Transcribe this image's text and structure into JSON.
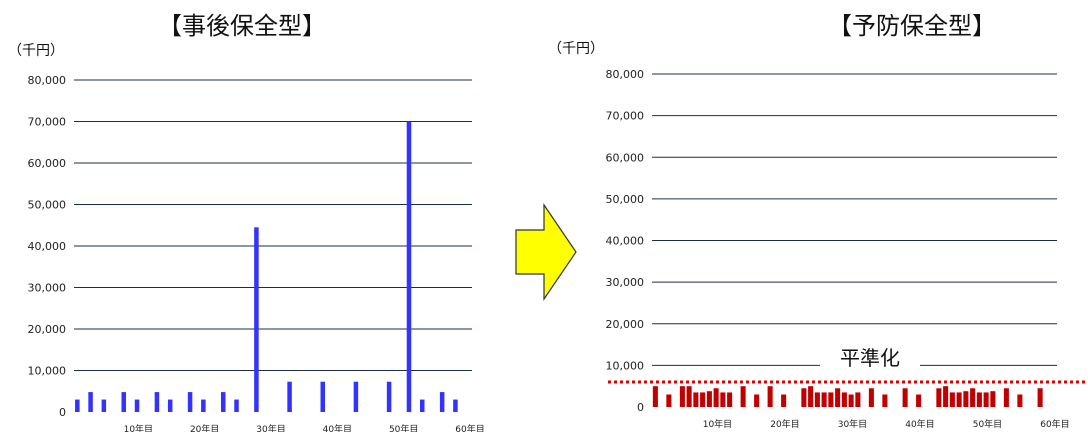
{
  "titles": {
    "left": "【事後保全型】",
    "right": "【予防保全型】"
  },
  "units": {
    "left": "（千円）",
    "right": "（千円）"
  },
  "annotation": "平準化",
  "arrow_color": "#ffff00",
  "chart_data": [
    {
      "type": "bar",
      "title": "【事後保全型】",
      "ylabel": "（千円）",
      "ylim": [
        0,
        80000
      ],
      "yticks": [
        0,
        10000,
        20000,
        30000,
        40000,
        50000,
        60000,
        70000,
        80000
      ],
      "ytick_labels": [
        "0",
        "10,000",
        "20,000",
        "30,000",
        "40,000",
        "50,000",
        "60,000",
        "70,000",
        "80,000"
      ],
      "xtick_labels": [
        "10年目",
        "20年目",
        "30年目",
        "40年目",
        "50年目",
        "60年目"
      ],
      "xtick_positions": [
        10,
        20,
        30,
        40,
        50,
        60
      ],
      "color": "#3333ff",
      "bars": [
        {
          "x": 1,
          "y": 3000
        },
        {
          "x": 3,
          "y": 4800
        },
        {
          "x": 5,
          "y": 3000
        },
        {
          "x": 8,
          "y": 4800
        },
        {
          "x": 10,
          "y": 3000
        },
        {
          "x": 13,
          "y": 4800
        },
        {
          "x": 15,
          "y": 3000
        },
        {
          "x": 18,
          "y": 4800
        },
        {
          "x": 20,
          "y": 3000
        },
        {
          "x": 23,
          "y": 4800
        },
        {
          "x": 25,
          "y": 3000
        },
        {
          "x": 28,
          "y": 44500
        },
        {
          "x": 33,
          "y": 7300
        },
        {
          "x": 38,
          "y": 7300
        },
        {
          "x": 43,
          "y": 7300
        },
        {
          "x": 48,
          "y": 7300
        },
        {
          "x": 51,
          "y": 70000
        },
        {
          "x": 53,
          "y": 3000
        },
        {
          "x": 56,
          "y": 4800
        },
        {
          "x": 58,
          "y": 3000
        }
      ]
    },
    {
      "type": "bar",
      "title": "【予防保全型】",
      "ylabel": "（千円）",
      "ylim": [
        0,
        80000
      ],
      "yticks": [
        0,
        10000,
        20000,
        30000,
        40000,
        50000,
        60000,
        70000,
        80000
      ],
      "ytick_labels": [
        "0",
        "10,000",
        "20,000",
        "30,000",
        "40,000",
        "50,000",
        "60,000",
        "70,000",
        "80,000"
      ],
      "xtick_labels": [
        "10年目",
        "20年目",
        "30年目",
        "40年目",
        "50年目",
        "60年目"
      ],
      "xtick_positions": [
        10,
        20,
        30,
        40,
        50,
        60
      ],
      "color": "#c00000",
      "reference_line": {
        "y": 6000,
        "color": "#e00000",
        "style": "dotted"
      },
      "bars": [
        {
          "x": 1,
          "y": 5000
        },
        {
          "x": 3,
          "y": 3000
        },
        {
          "x": 5,
          "y": 5000
        },
        {
          "x": 6,
          "y": 5000
        },
        {
          "x": 7,
          "y": 3500
        },
        {
          "x": 8,
          "y": 3500
        },
        {
          "x": 9,
          "y": 3800
        },
        {
          "x": 10,
          "y": 4500
        },
        {
          "x": 11,
          "y": 3500
        },
        {
          "x": 12,
          "y": 3500
        },
        {
          "x": 14,
          "y": 5000
        },
        {
          "x": 16,
          "y": 3000
        },
        {
          "x": 18,
          "y": 5000
        },
        {
          "x": 20,
          "y": 3000
        },
        {
          "x": 23,
          "y": 4500
        },
        {
          "x": 24,
          "y": 5000
        },
        {
          "x": 25,
          "y": 3500
        },
        {
          "x": 26,
          "y": 3500
        },
        {
          "x": 27,
          "y": 3500
        },
        {
          "x": 28,
          "y": 4500
        },
        {
          "x": 29,
          "y": 3500
        },
        {
          "x": 30,
          "y": 3000
        },
        {
          "x": 31,
          "y": 3500
        },
        {
          "x": 33,
          "y": 4500
        },
        {
          "x": 35,
          "y": 3000
        },
        {
          "x": 38,
          "y": 4500
        },
        {
          "x": 40,
          "y": 3000
        },
        {
          "x": 43,
          "y": 4500
        },
        {
          "x": 44,
          "y": 5000
        },
        {
          "x": 45,
          "y": 3500
        },
        {
          "x": 46,
          "y": 3500
        },
        {
          "x": 47,
          "y": 3800
        },
        {
          "x": 48,
          "y": 4500
        },
        {
          "x": 49,
          "y": 3500
        },
        {
          "x": 50,
          "y": 3500
        },
        {
          "x": 51,
          "y": 3800
        },
        {
          "x": 53,
          "y": 4500
        },
        {
          "x": 55,
          "y": 3000
        },
        {
          "x": 58,
          "y": 4500
        }
      ]
    }
  ]
}
